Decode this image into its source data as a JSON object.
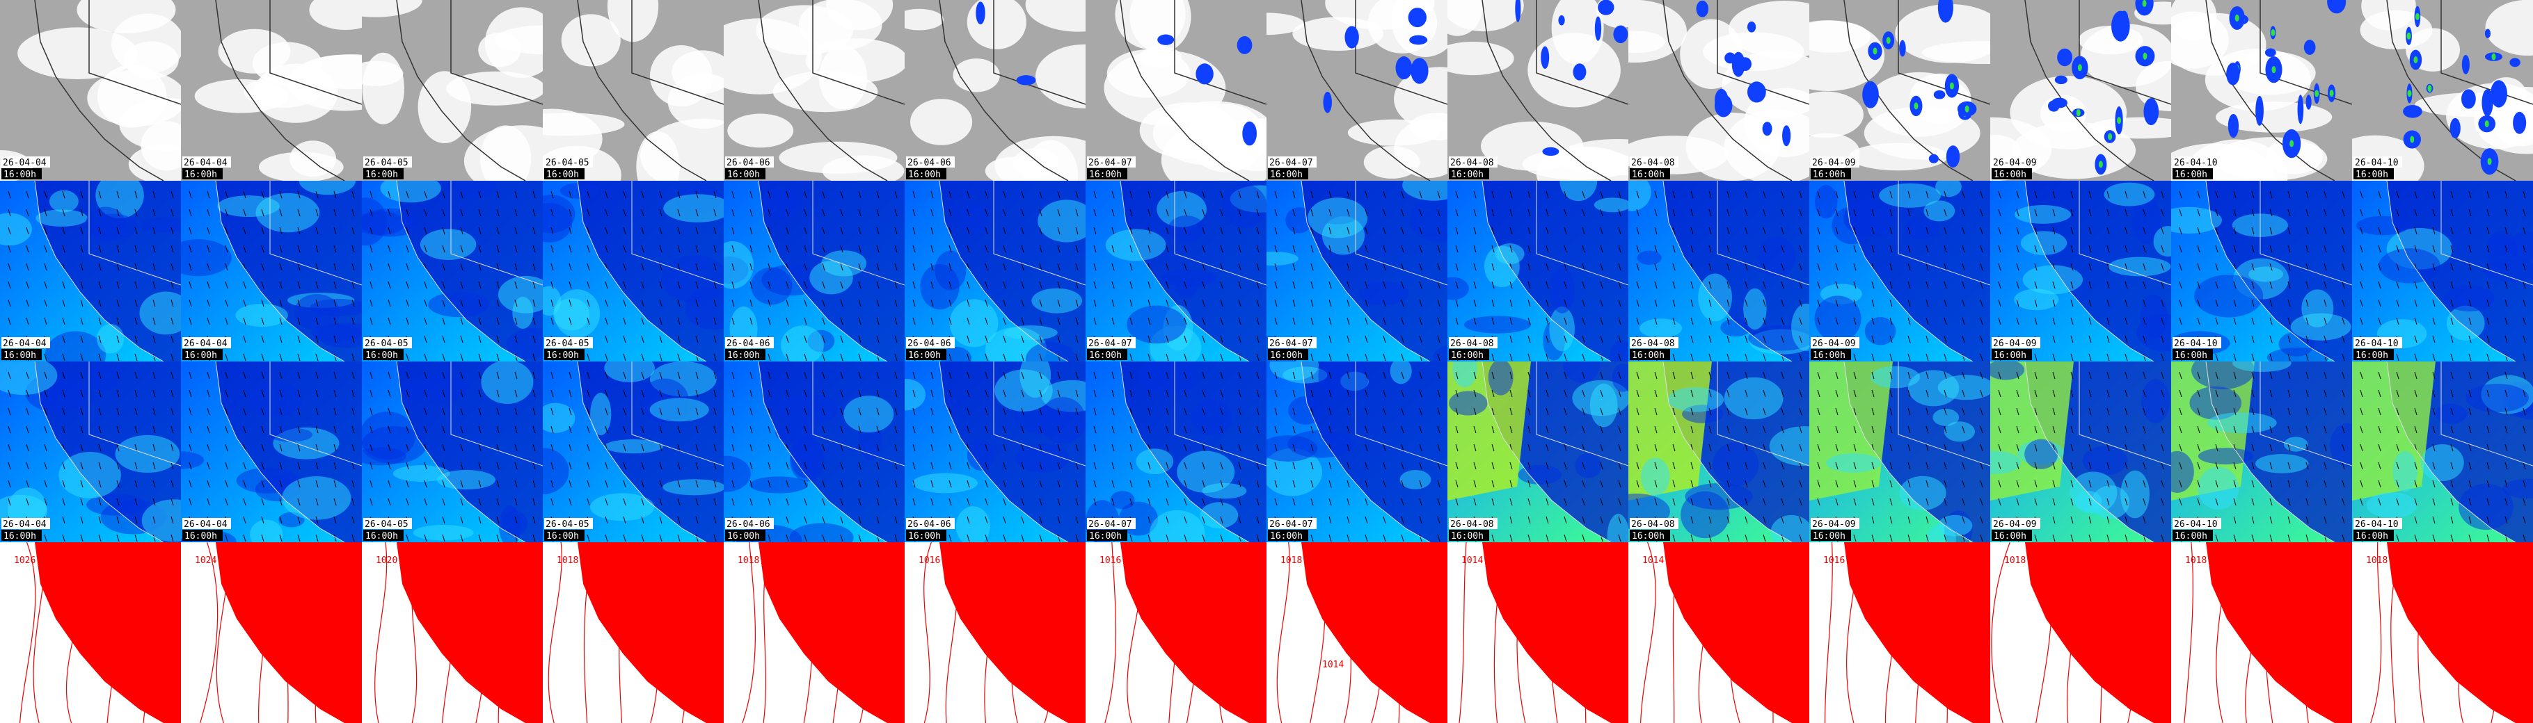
{
  "panels": {
    "dates": [
      "26-04-04",
      "26-04-04",
      "26-04-05",
      "26-04-05",
      "26-04-06",
      "26-04-06",
      "26-04-07",
      "26-04-07",
      "26-04-08",
      "26-04-08",
      "26-04-09",
      "26-04-09",
      "26-04-10",
      "26-04-10"
    ],
    "times": [
      "16:00h",
      "16:00h",
      "16:00h",
      "16:00h",
      "16:00h",
      "16:00h",
      "16:00h",
      "16:00h",
      "16:00h",
      "16:00h",
      "16:00h",
      "16:00h",
      "16:00h",
      "16:00h"
    ]
  },
  "isobar_labels": [
    [
      "1026"
    ],
    [
      "1024"
    ],
    [
      "1020"
    ],
    [
      "1018"
    ],
    [
      "1018"
    ],
    [
      "1016"
    ],
    [
      "1016"
    ],
    [
      "1018",
      "1014"
    ],
    [
      "1014"
    ],
    [
      "1014"
    ],
    [
      "1016"
    ],
    [
      "1018"
    ],
    [
      "1018"
    ],
    [
      "1018"
    ]
  ]
}
